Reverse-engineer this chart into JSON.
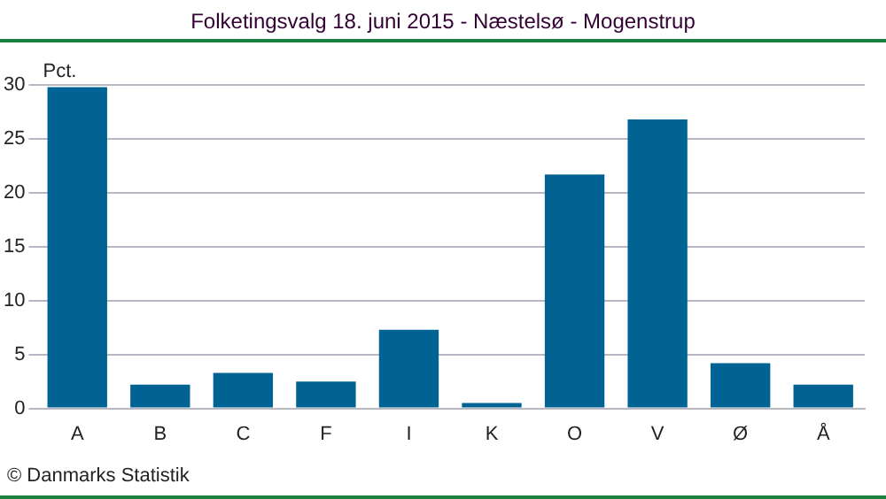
{
  "chart_data": {
    "type": "bar",
    "title": "Folketingsvalg 18. juni 2015 - Næstelsø - Mogenstrup",
    "ylabel": "Pct.",
    "categories": [
      "A",
      "B",
      "C",
      "F",
      "I",
      "K",
      "O",
      "V",
      "Ø",
      "Å"
    ],
    "values": [
      29.8,
      2.2,
      3.3,
      2.5,
      7.3,
      0.5,
      21.7,
      26.8,
      4.2,
      2.2
    ],
    "color": "#006394",
    "ylim": [
      0,
      30
    ],
    "yticks": [
      0,
      5,
      10,
      15,
      20,
      25,
      30
    ],
    "grid": "y",
    "legend": false,
    "annotations": [
      "© Danmarks Statistik"
    ]
  }
}
